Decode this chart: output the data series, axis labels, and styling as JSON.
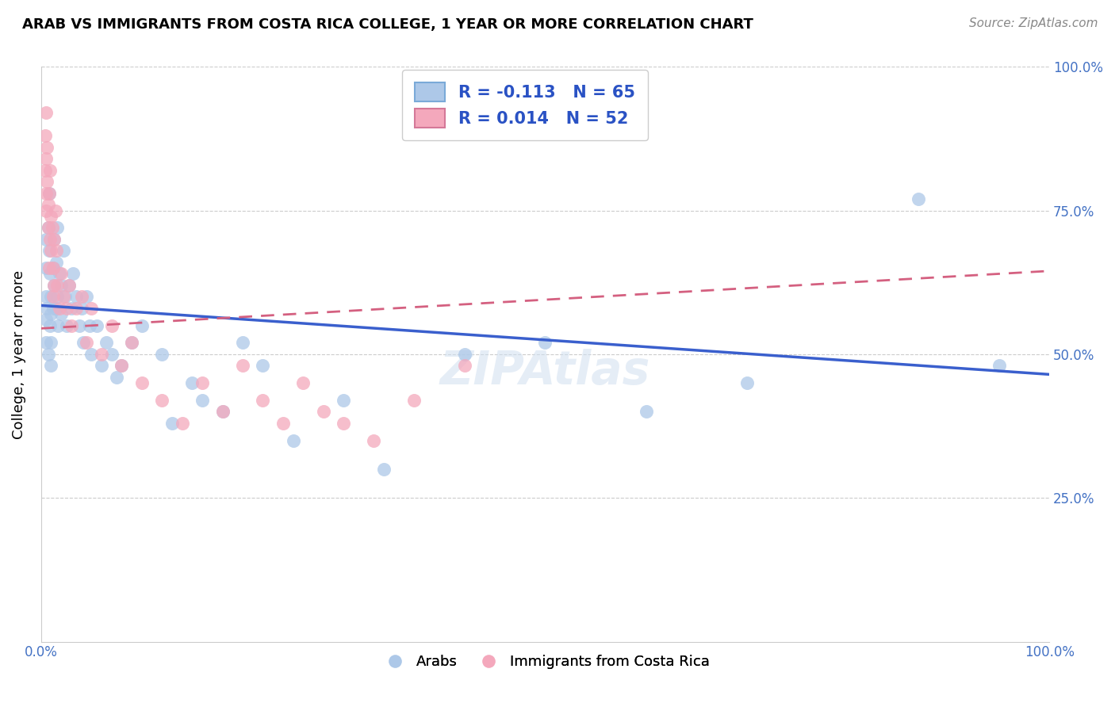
{
  "title": "ARAB VS IMMIGRANTS FROM COSTA RICA COLLEGE, 1 YEAR OR MORE CORRELATION CHART",
  "source": "Source: ZipAtlas.com",
  "ylabel": "College, 1 year or more",
  "xlim": [
    0,
    1.0
  ],
  "ylim": [
    0,
    1.0
  ],
  "legend_blue_label": "R = -0.113   N = 65",
  "legend_pink_label": "R = 0.014   N = 52",
  "legend_blue_series": "Arabs",
  "legend_pink_series": "Immigrants from Costa Rica",
  "blue_color": "#adc8e8",
  "pink_color": "#f4a8bc",
  "blue_line_color": "#3a5fcd",
  "pink_line_color": "#d46080",
  "blue_line_x0": 0.0,
  "blue_line_y0": 0.585,
  "blue_line_x1": 1.0,
  "blue_line_y1": 0.465,
  "pink_line_x0": 0.0,
  "pink_line_y0": 0.545,
  "pink_line_x1": 1.0,
  "pink_line_y1": 0.645,
  "blue_x": [
    0.005,
    0.005,
    0.005,
    0.005,
    0.005,
    0.006,
    0.007,
    0.007,
    0.008,
    0.008,
    0.009,
    0.009,
    0.01,
    0.01,
    0.01,
    0.01,
    0.012,
    0.012,
    0.013,
    0.013,
    0.015,
    0.015,
    0.016,
    0.016,
    0.017,
    0.018,
    0.02,
    0.02,
    0.022,
    0.024,
    0.025,
    0.028,
    0.03,
    0.032,
    0.035,
    0.038,
    0.04,
    0.042,
    0.045,
    0.048,
    0.05,
    0.055,
    0.06,
    0.065,
    0.07,
    0.075,
    0.08,
    0.09,
    0.1,
    0.12,
    0.13,
    0.15,
    0.16,
    0.18,
    0.2,
    0.22,
    0.25,
    0.3,
    0.34,
    0.42,
    0.5,
    0.6,
    0.7,
    0.87,
    0.95
  ],
  "blue_y": [
    0.6,
    0.56,
    0.52,
    0.65,
    0.7,
    0.58,
    0.72,
    0.5,
    0.68,
    0.78,
    0.64,
    0.55,
    0.6,
    0.57,
    0.52,
    0.48,
    0.65,
    0.58,
    0.62,
    0.7,
    0.66,
    0.58,
    0.6,
    0.72,
    0.55,
    0.64,
    0.62,
    0.57,
    0.68,
    0.6,
    0.55,
    0.62,
    0.58,
    0.64,
    0.6,
    0.55,
    0.58,
    0.52,
    0.6,
    0.55,
    0.5,
    0.55,
    0.48,
    0.52,
    0.5,
    0.46,
    0.48,
    0.52,
    0.55,
    0.5,
    0.38,
    0.45,
    0.42,
    0.4,
    0.52,
    0.48,
    0.35,
    0.42,
    0.3,
    0.5,
    0.52,
    0.4,
    0.45,
    0.77,
    0.48
  ],
  "pink_x": [
    0.004,
    0.004,
    0.005,
    0.005,
    0.005,
    0.005,
    0.006,
    0.006,
    0.007,
    0.007,
    0.008,
    0.008,
    0.009,
    0.009,
    0.01,
    0.01,
    0.011,
    0.012,
    0.012,
    0.013,
    0.013,
    0.014,
    0.015,
    0.016,
    0.018,
    0.02,
    0.022,
    0.025,
    0.028,
    0.03,
    0.035,
    0.04,
    0.045,
    0.05,
    0.06,
    0.07,
    0.08,
    0.09,
    0.1,
    0.12,
    0.14,
    0.16,
    0.18,
    0.2,
    0.22,
    0.24,
    0.26,
    0.28,
    0.3,
    0.33,
    0.37,
    0.42
  ],
  "pink_y": [
    0.88,
    0.82,
    0.92,
    0.78,
    0.84,
    0.75,
    0.8,
    0.86,
    0.76,
    0.72,
    0.78,
    0.65,
    0.7,
    0.82,
    0.68,
    0.74,
    0.72,
    0.65,
    0.6,
    0.7,
    0.62,
    0.75,
    0.68,
    0.62,
    0.58,
    0.64,
    0.6,
    0.58,
    0.62,
    0.55,
    0.58,
    0.6,
    0.52,
    0.58,
    0.5,
    0.55,
    0.48,
    0.52,
    0.45,
    0.42,
    0.38,
    0.45,
    0.4,
    0.48,
    0.42,
    0.38,
    0.45,
    0.4,
    0.38,
    0.35,
    0.42,
    0.48
  ]
}
